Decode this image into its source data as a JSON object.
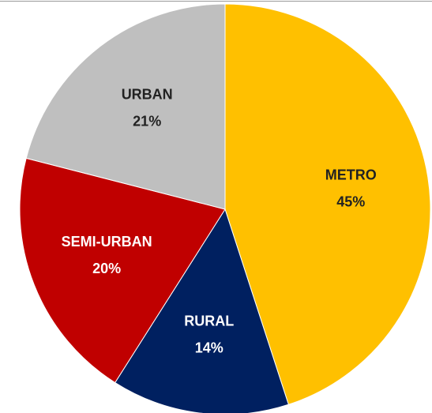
{
  "chart_data": {
    "type": "pie",
    "categories": [
      "METRO",
      "RURAL",
      "SEMI-URBAN",
      "URBAN"
    ],
    "values": [
      45,
      14,
      20,
      21
    ],
    "value_labels": [
      "45%",
      "14%",
      "20%",
      "21%"
    ],
    "colors": [
      "#FFC000",
      "#002060",
      "#C00000",
      "#BFBFBF"
    ]
  }
}
